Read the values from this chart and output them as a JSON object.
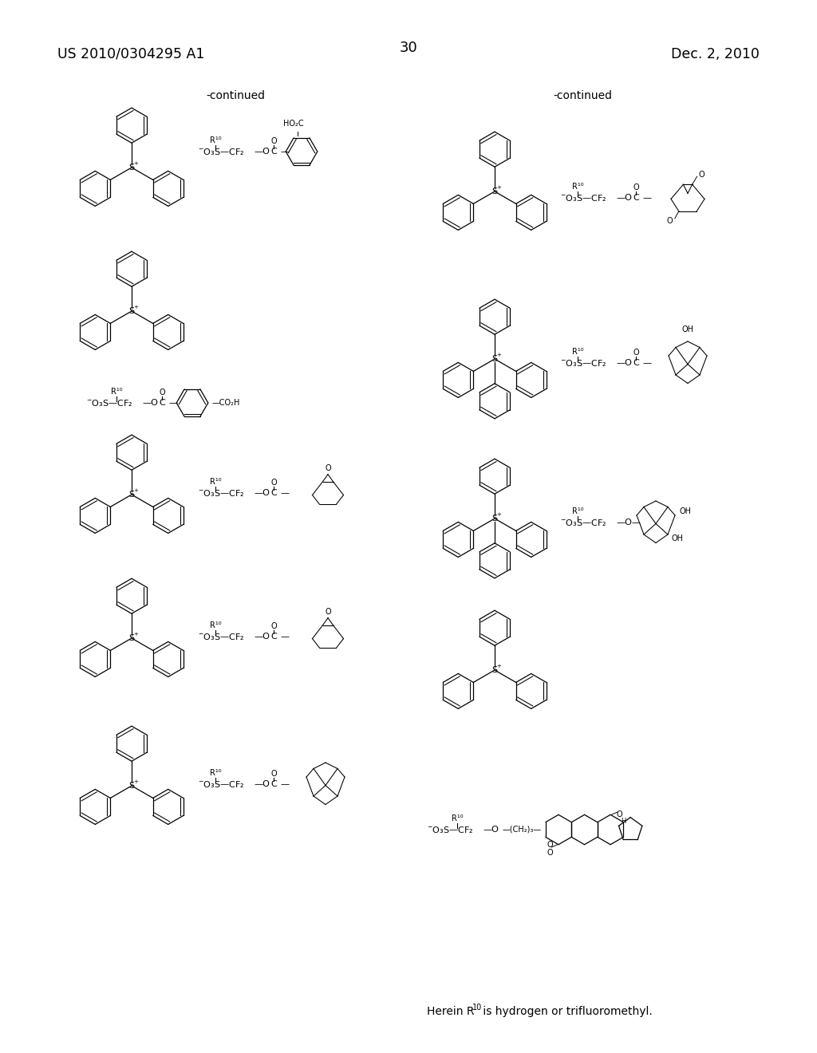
{
  "background_color": "#ffffff",
  "header_left": "US 2010/0304295 A1",
  "header_right": "Dec. 2, 2010",
  "page_number": "30",
  "continued_left": "-continued",
  "continued_right": "-continued",
  "footer_text": "Herein R",
  "footer_sup": "10",
  "footer_rest": " is hydrogen or trifluoromethyl.",
  "figw": 10.24,
  "figh": 13.2,
  "dpi": 100
}
